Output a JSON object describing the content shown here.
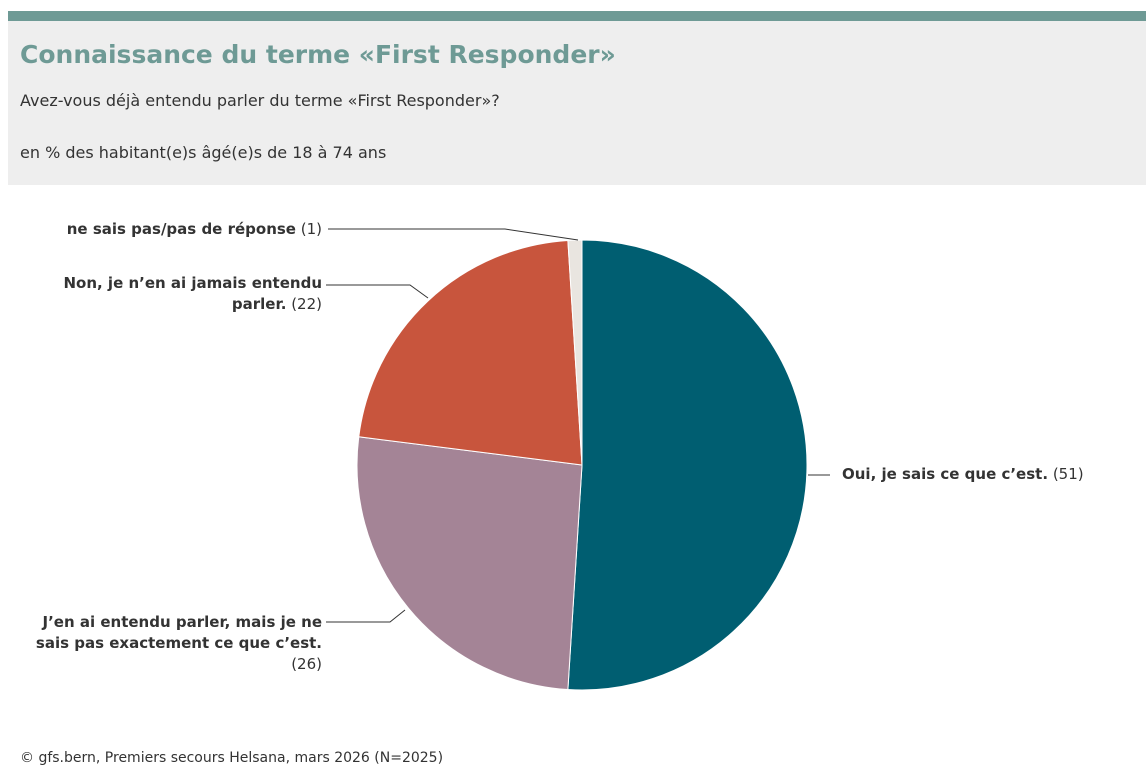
{
  "chart_data": {
    "type": "pie",
    "title": "Connaissance du terme «First Responder»",
    "subtitle": "Avez-vous déjà entendu parler du terme «First Responder»?",
    "unit_note": "en % des habitant(e)s âgé(e)s de 18 à 74 ans",
    "source": "© gfs.bern, Premiers secours Helsana, mars 2026 (N=2025)",
    "categories": [
      "Oui, je sais ce que c’est.",
      "J’en ai entendu parler, mais je ne sais pas exactement ce que c’est.",
      "Non, je n’en ai jamais entendu parler.",
      "ne sais pas/pas de réponse"
    ],
    "values": [
      51,
      26,
      22,
      1
    ],
    "value_labels": [
      "(51)",
      "(26)",
      "(22)",
      "(1)"
    ],
    "colors": [
      "#005e71",
      "#a48496",
      "#c8553d",
      "#e9e5e0"
    ]
  }
}
